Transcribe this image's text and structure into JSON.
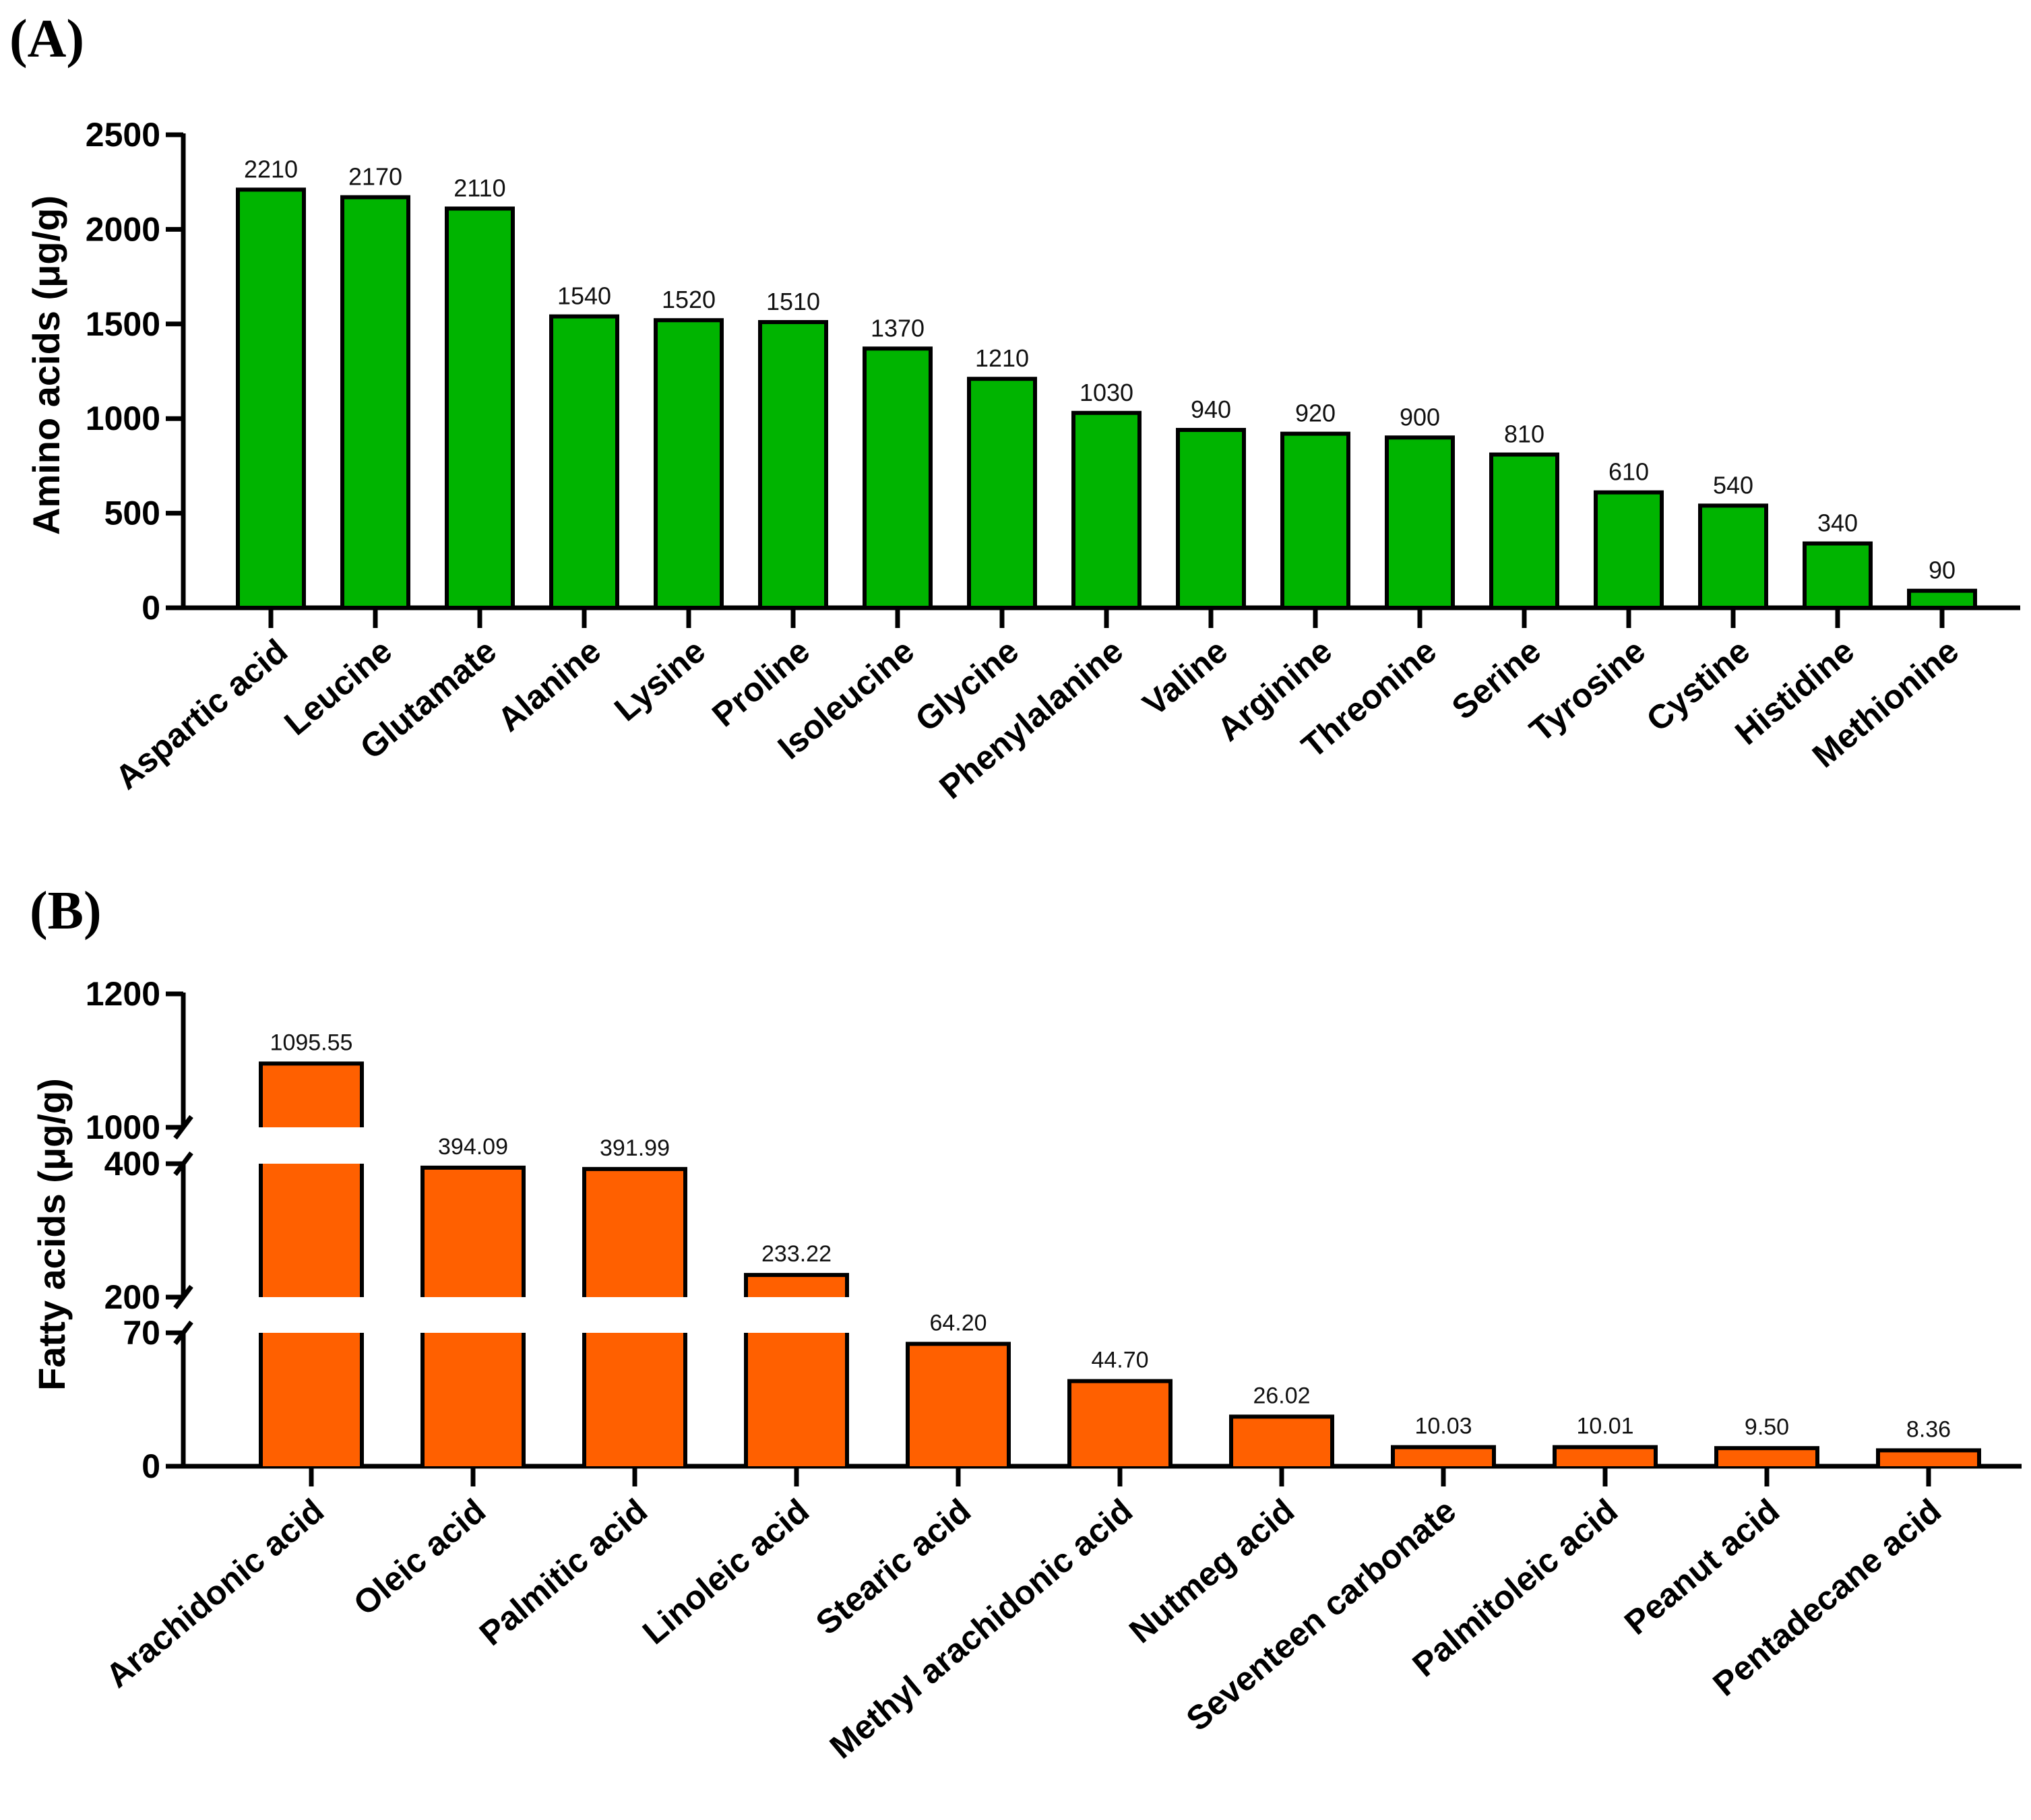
{
  "chart_data": [
    {
      "panel": "(A)",
      "type": "bar",
      "ylabel": "Amino acids (μg/g)",
      "xlabel": "",
      "ylim": [
        0,
        2500
      ],
      "yticks": [
        "0",
        "500",
        "1000",
        "1500",
        "2000",
        "2500"
      ],
      "color": "#00b400",
      "categories": [
        "Aspartic acid",
        "Leucine",
        "Glutamate",
        "Alanine",
        "Lysine",
        "Proline",
        "Isoleucine",
        "Glycine",
        "Phenylalanine",
        "Valine",
        "Arginine",
        "Threonine",
        "Serine",
        "Tyrosine",
        "Cystine",
        "Histidine",
        "Methionine"
      ],
      "values": [
        2210,
        2170,
        2110,
        1540,
        1520,
        1510,
        1370,
        1210,
        1030,
        940,
        920,
        900,
        810,
        610,
        540,
        340,
        90
      ],
      "value_labels": [
        "2210",
        "2170",
        "2110",
        "1540",
        "1520",
        "1510",
        "1370",
        "1210",
        "1030",
        "940",
        "920",
        "900",
        "810",
        "610",
        "540",
        "340",
        "90"
      ]
    },
    {
      "panel": "(B)",
      "type": "bar",
      "ylabel": "Fatty acids (μg/g)",
      "xlabel": "",
      "axis_breaks": [
        {
          "range": [
            0,
            70
          ],
          "ticks": [
            "0",
            "70"
          ]
        },
        {
          "range": [
            200,
            400
          ],
          "ticks": [
            "200",
            "400"
          ]
        },
        {
          "range": [
            1000,
            1200
          ],
          "ticks": [
            "1000",
            "1200"
          ]
        }
      ],
      "color": "#ff6000",
      "categories": [
        "Arachidonic acid",
        "Oleic acid",
        "Palmitic acid",
        "Linoleic acid",
        "Stearic acid",
        "Methyl arachidonic acid",
        "Nutmeg acid",
        "Seventeen carbonate",
        "Palmitoleic acid",
        "Peanut acid",
        "Pentadecane acid"
      ],
      "values": [
        1095.55,
        394.09,
        391.99,
        233.22,
        64.2,
        44.7,
        26.02,
        10.03,
        10.01,
        9.5,
        8.36
      ],
      "value_labels": [
        "1095.55",
        "394.09",
        "391.99",
        "233.22",
        "64.20",
        "44.70",
        "26.02",
        "10.03",
        "10.01",
        "9.50",
        "8.36"
      ]
    }
  ]
}
